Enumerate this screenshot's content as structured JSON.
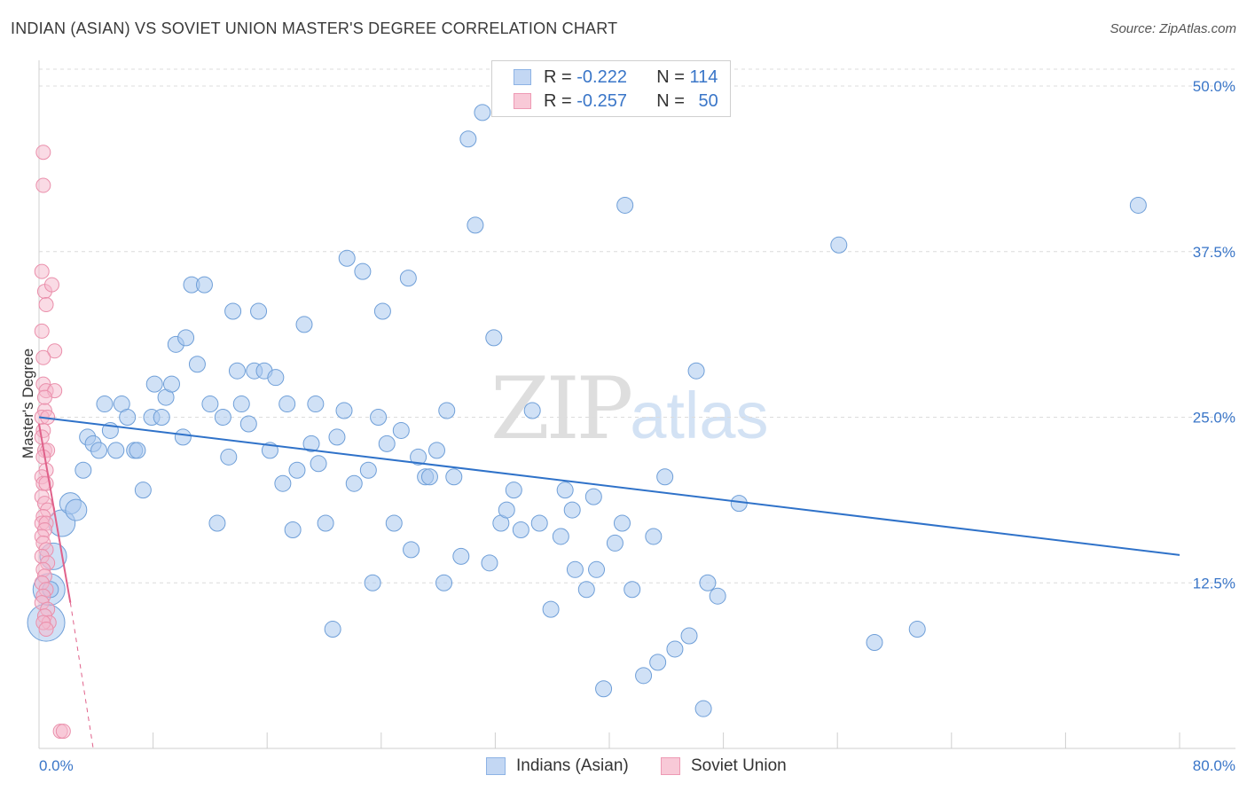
{
  "title": "INDIAN (ASIAN) VS SOVIET UNION MASTER'S DEGREE CORRELATION CHART",
  "source": "Source: ZipAtlas.com",
  "watermark": {
    "zip": "ZIP",
    "atlas": "atlas"
  },
  "legend": {
    "blue": {
      "r_label": "R = ",
      "r_value": "-0.222",
      "n_label": "N = ",
      "n_value": "114",
      "color": "#aac8ef"
    },
    "pink": {
      "r_label": "R = ",
      "r_value": "-0.257",
      "n_label": "N = ",
      "n_value": "50",
      "color": "#f6b8cb"
    }
  },
  "bottom_legend": {
    "blue": "Indians (Asian)",
    "pink": "Soviet Union"
  },
  "chart_data": {
    "type": "scatter",
    "title": "INDIAN (ASIAN) VS SOVIET UNION MASTER'S DEGREE CORRELATION CHART",
    "xlabel": "",
    "ylabel": "Master's Degree",
    "xlim": [
      0,
      80
    ],
    "ylim": [
      0,
      50
    ],
    "x_tick_labels": [
      "0.0%",
      "80.0%"
    ],
    "y_ticks": [
      12.5,
      25.0,
      37.5,
      50.0
    ],
    "y_tick_labels": [
      "12.5%",
      "25.0%",
      "37.5%",
      "50.0%"
    ],
    "series": [
      {
        "name": "Indians (Asian)",
        "color": "#aac8ef",
        "stroke": "#6f9fd8",
        "trend": {
          "x": [
            0,
            80
          ],
          "y": [
            25.0,
            14.6
          ],
          "color": "#2f72c9"
        },
        "points": [
          [
            0.5,
            9.5,
            3
          ],
          [
            0.7,
            12.0,
            2.5
          ],
          [
            1.0,
            14.5,
            2
          ],
          [
            1.6,
            17.0,
            2
          ],
          [
            2.2,
            18.5,
            1.5
          ],
          [
            2.6,
            18.0,
            1.5
          ],
          [
            3.1,
            21.0,
            1
          ],
          [
            3.4,
            23.5,
            1
          ],
          [
            3.8,
            23.0,
            1
          ],
          [
            4.2,
            22.5,
            1
          ],
          [
            4.6,
            26.0,
            1
          ],
          [
            5.0,
            24.0,
            1
          ],
          [
            5.4,
            22.5,
            1
          ],
          [
            5.8,
            26.0,
            1
          ],
          [
            6.2,
            25.0,
            1
          ],
          [
            6.7,
            22.5,
            1
          ],
          [
            6.9,
            22.5,
            1
          ],
          [
            7.3,
            19.5,
            1
          ],
          [
            7.9,
            25.0,
            1
          ],
          [
            8.1,
            27.5,
            1
          ],
          [
            8.6,
            25.0,
            1
          ],
          [
            8.9,
            26.5,
            1
          ],
          [
            9.3,
            27.5,
            1
          ],
          [
            9.6,
            30.5,
            1
          ],
          [
            10.1,
            23.5,
            1
          ],
          [
            10.3,
            31.0,
            1
          ],
          [
            10.7,
            35.0,
            1
          ],
          [
            11.1,
            29.0,
            1
          ],
          [
            11.6,
            35.0,
            1
          ],
          [
            12.0,
            26.0,
            1
          ],
          [
            12.5,
            17.0,
            1
          ],
          [
            12.9,
            25.0,
            1
          ],
          [
            13.3,
            22.0,
            1
          ],
          [
            13.6,
            33.0,
            1
          ],
          [
            13.9,
            28.5,
            1
          ],
          [
            14.2,
            26.0,
            1
          ],
          [
            14.7,
            24.5,
            1
          ],
          [
            15.1,
            28.5,
            1
          ],
          [
            15.4,
            33.0,
            1
          ],
          [
            15.8,
            28.5,
            1
          ],
          [
            16.2,
            22.5,
            1
          ],
          [
            16.6,
            28.0,
            1
          ],
          [
            17.1,
            20.0,
            1
          ],
          [
            17.4,
            26.0,
            1
          ],
          [
            17.8,
            16.5,
            1
          ],
          [
            18.1,
            21.0,
            1
          ],
          [
            18.6,
            32.0,
            1
          ],
          [
            19.1,
            23.0,
            1
          ],
          [
            19.4,
            26.0,
            1
          ],
          [
            19.6,
            21.5,
            1
          ],
          [
            20.1,
            17.0,
            1
          ],
          [
            20.6,
            9.0,
            1
          ],
          [
            20.9,
            23.5,
            1
          ],
          [
            21.4,
            25.5,
            1
          ],
          [
            21.6,
            37.0,
            1
          ],
          [
            22.1,
            20.0,
            1
          ],
          [
            22.7,
            36.0,
            1
          ],
          [
            23.1,
            21.0,
            1
          ],
          [
            23.4,
            12.5,
            1
          ],
          [
            23.8,
            25.0,
            1
          ],
          [
            24.1,
            33.0,
            1
          ],
          [
            24.4,
            23.0,
            1
          ],
          [
            24.9,
            17.0,
            1
          ],
          [
            25.4,
            24.0,
            1
          ],
          [
            25.9,
            35.5,
            1
          ],
          [
            26.1,
            15.0,
            1
          ],
          [
            26.6,
            22.0,
            1
          ],
          [
            27.1,
            20.5,
            1
          ],
          [
            27.4,
            20.5,
            1
          ],
          [
            27.9,
            22.5,
            1
          ],
          [
            28.4,
            12.5,
            1
          ],
          [
            28.6,
            25.5,
            1
          ],
          [
            29.1,
            20.5,
            1
          ],
          [
            29.6,
            14.5,
            1
          ],
          [
            30.1,
            46.0,
            1
          ],
          [
            30.6,
            39.5,
            1
          ],
          [
            31.1,
            48.0,
            1
          ],
          [
            31.6,
            14.0,
            1
          ],
          [
            31.9,
            31.0,
            1
          ],
          [
            32.4,
            17.0,
            1
          ],
          [
            32.8,
            18.0,
            1
          ],
          [
            33.3,
            19.5,
            1
          ],
          [
            33.8,
            16.5,
            1
          ],
          [
            34.6,
            25.5,
            1
          ],
          [
            35.1,
            17.0,
            1
          ],
          [
            35.9,
            10.5,
            1
          ],
          [
            36.6,
            16.0,
            1
          ],
          [
            36.9,
            19.5,
            1
          ],
          [
            37.4,
            18.0,
            1
          ],
          [
            37.6,
            13.5,
            1
          ],
          [
            38.4,
            12.0,
            1
          ],
          [
            38.9,
            19.0,
            1
          ],
          [
            39.1,
            13.5,
            1
          ],
          [
            39.6,
            4.5,
            1
          ],
          [
            40.4,
            15.5,
            1
          ],
          [
            40.9,
            17.0,
            1
          ],
          [
            41.1,
            41.0,
            1
          ],
          [
            41.6,
            12.0,
            1
          ],
          [
            42.4,
            5.5,
            1
          ],
          [
            43.1,
            16.0,
            1
          ],
          [
            43.4,
            6.5,
            1
          ],
          [
            43.9,
            20.5,
            1
          ],
          [
            44.6,
            7.5,
            1
          ],
          [
            45.6,
            8.5,
            1
          ],
          [
            46.1,
            28.5,
            1
          ],
          [
            46.6,
            3.0,
            1
          ],
          [
            46.9,
            12.5,
            1
          ],
          [
            47.6,
            11.5,
            1
          ],
          [
            49.1,
            18.5,
            1
          ],
          [
            56.1,
            38.0,
            1
          ],
          [
            58.6,
            8.0,
            1
          ],
          [
            61.6,
            9.0,
            1
          ],
          [
            77.1,
            41.0,
            1
          ],
          [
            0.8,
            12.0,
            1
          ]
        ]
      },
      {
        "name": "Soviet Union",
        "color": "#f6b8cb",
        "stroke": "#ea8fab",
        "trend": {
          "x": [
            0,
            2.2
          ],
          "y": [
            24.5,
            11.0
          ],
          "dash_to": {
            "x": 3.8,
            "y": 0
          },
          "color": "#e0618a"
        },
        "points": [
          [
            0.3,
            45.0
          ],
          [
            0.3,
            42.5
          ],
          [
            0.2,
            36.0
          ],
          [
            0.4,
            34.5
          ],
          [
            0.9,
            35.0
          ],
          [
            0.5,
            33.5
          ],
          [
            0.2,
            31.5
          ],
          [
            1.1,
            30.0
          ],
          [
            0.3,
            29.5
          ],
          [
            0.3,
            27.5
          ],
          [
            0.5,
            27.0
          ],
          [
            1.1,
            27.0
          ],
          [
            0.4,
            25.5
          ],
          [
            0.2,
            25.0
          ],
          [
            0.6,
            25.0
          ],
          [
            0.3,
            24.0
          ],
          [
            0.2,
            23.5
          ],
          [
            0.4,
            22.5
          ],
          [
            0.6,
            22.5
          ],
          [
            0.3,
            22.0
          ],
          [
            0.5,
            21.0
          ],
          [
            0.2,
            20.5
          ],
          [
            0.3,
            20.0
          ],
          [
            0.5,
            20.0
          ],
          [
            0.2,
            19.0
          ],
          [
            0.4,
            18.5
          ],
          [
            0.6,
            18.0
          ],
          [
            0.3,
            17.5
          ],
          [
            0.2,
            17.0
          ],
          [
            0.5,
            17.0
          ],
          [
            0.4,
            16.5
          ],
          [
            0.2,
            16.0
          ],
          [
            0.3,
            15.5
          ],
          [
            0.5,
            15.0
          ],
          [
            0.2,
            14.5
          ],
          [
            0.6,
            14.0
          ],
          [
            0.3,
            13.5
          ],
          [
            0.4,
            13.0
          ],
          [
            0.2,
            12.5
          ],
          [
            0.5,
            12.0
          ],
          [
            0.3,
            11.5
          ],
          [
            0.2,
            11.0
          ],
          [
            0.6,
            10.5
          ],
          [
            0.4,
            10.0
          ],
          [
            0.7,
            9.5
          ],
          [
            0.3,
            9.5
          ],
          [
            0.5,
            9.0
          ],
          [
            1.5,
            1.3
          ],
          [
            1.7,
            1.3
          ],
          [
            0.4,
            26.5
          ]
        ]
      }
    ]
  }
}
